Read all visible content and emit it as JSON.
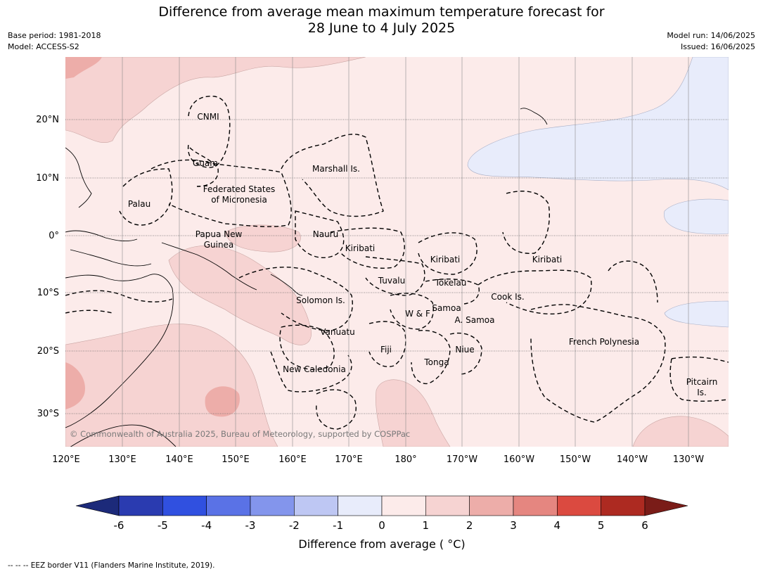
{
  "title_line1": "Difference from average mean maximum temperature forecast for",
  "title_line2": "28 June to 4 July 2025",
  "meta": {
    "base_period": "Base period: 1981-2018",
    "model": "Model: ACCESS-S2",
    "model_run": "Model run: 14/06/2025",
    "issued": "Issued: 16/06/2025"
  },
  "axes": {
    "lon_ticks": [
      "120°E",
      "130°E",
      "140°E",
      "150°E",
      "160°E",
      "170°E",
      "180°",
      "170°W",
      "160°W",
      "150°W",
      "140°W",
      "130°W"
    ],
    "lat_ticks": [
      "20°N",
      "10°N",
      "0°",
      "10°S",
      "20°S",
      "30°S"
    ]
  },
  "regions": {
    "cnmi": "CNMI",
    "guam": "Guam",
    "marshall": "Marshall Is.",
    "fsm_1": "Federated States",
    "fsm_2": "of Micronesia",
    "palau": "Palau",
    "png_1": "Papua New",
    "png_2": "Guinea",
    "nauru": "Nauru",
    "kiribati_w": "Kiribati",
    "kiribati_c": "Kiribati",
    "kiribati_e": "Kiribati",
    "tuvalu": "Tuvalu",
    "tokelau": "Tokelau",
    "solomon": "Solomon Is.",
    "samoa": "Samoa",
    "wf": "W & F",
    "asamoa": "A. Samoa",
    "cook": "Cook Is.",
    "vanuatu": "Vanuatu",
    "fiji": "Fiji",
    "niue": "Niue",
    "tonga": "Tonga",
    "french_polynesia": "French Polynesia",
    "new_caledonia": "New Caledonia",
    "pitcairn_1": "Pitcairn",
    "pitcairn_2": "Is."
  },
  "copyright": "© Commonwealth of Australia 2025, Bureau of Meteorology, supported by COSPPac",
  "colorbar": {
    "ticks": [
      "-6",
      "-5",
      "-4",
      "-3",
      "-2",
      "-1",
      "0",
      "1",
      "2",
      "3",
      "4",
      "5",
      "6"
    ],
    "colors": [
      "#2a3bb0",
      "#3050e0",
      "#5a72e6",
      "#8395ec",
      "#bec7f3",
      "#e8ecfb",
      "#fcebea",
      "#f6d3d2",
      "#edada9",
      "#e58680",
      "#db4a40",
      "#ad2a21"
    ],
    "low_color": "#1c2a7a",
    "high_color": "#7a1c18",
    "title": "Difference from average ( °C)"
  },
  "footnote": "--  --  -- EEZ border V11 (Flanders Marine Institute, 2019)."
}
